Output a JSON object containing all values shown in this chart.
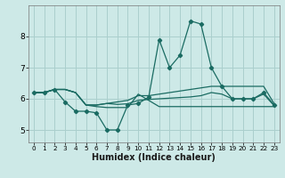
{
  "x": [
    0,
    1,
    2,
    3,
    4,
    5,
    6,
    7,
    8,
    9,
    10,
    11,
    12,
    13,
    14,
    15,
    16,
    17,
    18,
    19,
    20,
    21,
    22,
    23
  ],
  "line1": [
    6.2,
    6.2,
    6.3,
    6.3,
    6.2,
    5.8,
    5.75,
    5.72,
    5.72,
    5.72,
    6.15,
    5.95,
    5.75,
    5.75,
    5.75,
    5.75,
    5.75,
    5.75,
    5.75,
    5.75,
    5.75,
    5.75,
    5.75,
    5.75
  ],
  "line2": [
    6.2,
    6.2,
    6.3,
    5.9,
    5.6,
    5.6,
    5.55,
    5.0,
    5.0,
    5.8,
    5.85,
    6.05,
    7.9,
    7.0,
    7.4,
    8.5,
    8.4,
    7.0,
    6.4,
    6.0,
    6.0,
    6.0,
    6.2,
    5.8
  ],
  "line3": [
    6.2,
    6.2,
    6.3,
    6.3,
    6.2,
    5.8,
    5.8,
    5.85,
    5.82,
    5.84,
    5.95,
    5.98,
    6.0,
    6.02,
    6.04,
    6.06,
    6.1,
    6.2,
    6.15,
    6.0,
    6.0,
    6.0,
    6.15,
    5.78
  ],
  "line4": [
    6.2,
    6.2,
    6.3,
    6.3,
    6.2,
    5.8,
    5.8,
    5.85,
    5.9,
    5.95,
    6.1,
    6.1,
    6.15,
    6.2,
    6.25,
    6.3,
    6.35,
    6.4,
    6.4,
    6.4,
    6.4,
    6.4,
    6.4,
    5.85
  ],
  "bg_color": "#cde9e7",
  "grid_color": "#aacfcd",
  "line_color": "#1a6b62",
  "xlabel": "Humidex (Indice chaleur)",
  "ylim": [
    4.6,
    9.0
  ],
  "xlim": [
    -0.5,
    23.5
  ],
  "yticks": [
    5,
    6,
    7,
    8
  ],
  "xticks": [
    0,
    1,
    2,
    3,
    4,
    5,
    6,
    7,
    8,
    9,
    10,
    11,
    12,
    13,
    14,
    15,
    16,
    17,
    18,
    19,
    20,
    21,
    22,
    23
  ],
  "xlabel_fontsize": 7.0,
  "ytick_fontsize": 6.5,
  "xtick_fontsize": 5.2
}
